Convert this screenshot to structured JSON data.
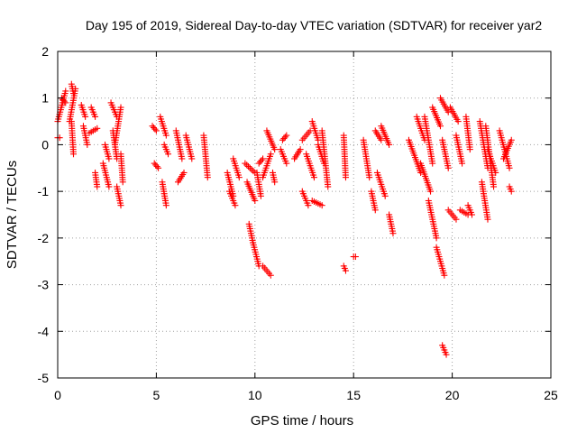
{
  "chart_data": {
    "type": "scatter",
    "title": "Day 195 of 2019, Sidereal Day-to-day VTEC variation (SDTVAR) for receiver yar2",
    "xlabel": "GPS time / hours",
    "ylabel": "SDTVAR / TECUs",
    "xlim": [
      0,
      25
    ],
    "ylim": [
      -5,
      2
    ],
    "xticks": [
      "0",
      "5",
      "10",
      "15",
      "20",
      "25"
    ],
    "yticks": [
      "2",
      "1",
      "0",
      "-1",
      "-2",
      "-3",
      "-4",
      "-5"
    ],
    "grid": true,
    "marker": "plus",
    "color": "#ff0000",
    "series": [
      {
        "name": "SDTVAR",
        "segments": [
          [
            0.0,
            0.1,
            0.15,
            0.15
          ],
          [
            0.0,
            0.4,
            0.5,
            1.15
          ],
          [
            0.4,
            0.2,
            0.9,
            1.0
          ],
          [
            0.6,
            0.9,
            0.5,
            1.2
          ],
          [
            0.8,
            0.7,
            1.1,
            1.3
          ],
          [
            0.7,
            0.8,
            0.5,
            -0.2
          ],
          [
            1.2,
            1.4,
            0.85,
            0.6
          ],
          [
            1.3,
            1.5,
            0.4,
            0.0
          ],
          [
            1.6,
            2.0,
            0.25,
            0.35
          ],
          [
            1.7,
            1.9,
            0.8,
            0.6
          ],
          [
            1.9,
            2.0,
            -0.6,
            -0.9
          ],
          [
            2.3,
            2.6,
            -0.4,
            -0.9
          ],
          [
            2.4,
            2.6,
            0.0,
            -0.3
          ],
          [
            2.8,
            3.0,
            0.3,
            -0.3
          ],
          [
            2.7,
            3.0,
            0.9,
            0.6
          ],
          [
            2.9,
            3.2,
            0.0,
            0.8
          ],
          [
            3.0,
            3.2,
            -0.9,
            -1.3
          ],
          [
            3.2,
            3.3,
            -0.2,
            -0.8
          ],
          [
            4.8,
            5.0,
            0.4,
            0.3
          ],
          [
            4.9,
            5.1,
            -0.4,
            -0.5
          ],
          [
            5.2,
            5.5,
            0.6,
            0.2
          ],
          [
            5.3,
            5.5,
            -0.8,
            -1.3
          ],
          [
            5.4,
            5.6,
            0.0,
            -0.2
          ],
          [
            6.0,
            6.3,
            0.3,
            -0.3
          ],
          [
            6.1,
            6.4,
            -0.8,
            -0.6
          ],
          [
            6.5,
            6.8,
            0.2,
            -0.3
          ],
          [
            7.4,
            7.6,
            0.2,
            -0.7
          ],
          [
            8.6,
            8.9,
            -0.6,
            -1.1
          ],
          [
            8.7,
            9.0,
            -1.0,
            -1.3
          ],
          [
            8.9,
            9.2,
            -0.3,
            -0.7
          ],
          [
            9.5,
            10.0,
            -0.4,
            -0.6
          ],
          [
            9.6,
            10.0,
            -0.8,
            -1.2
          ],
          [
            9.7,
            9.9,
            -1.7,
            -2.1
          ],
          [
            9.9,
            10.2,
            -2.1,
            -2.6
          ],
          [
            10.1,
            10.3,
            -0.6,
            -1.1
          ],
          [
            10.2,
            10.4,
            -0.4,
            -0.3
          ],
          [
            10.4,
            10.8,
            -0.7,
            -0.2
          ],
          [
            10.4,
            10.8,
            -2.6,
            -2.8
          ],
          [
            10.6,
            11.0,
            0.3,
            -0.1
          ],
          [
            10.9,
            11.0,
            -0.6,
            -0.8
          ],
          [
            11.3,
            11.6,
            -0.1,
            -0.4
          ],
          [
            11.4,
            11.6,
            0.1,
            0.2
          ],
          [
            12.0,
            12.3,
            -0.3,
            -0.1
          ],
          [
            12.4,
            12.7,
            -1.0,
            -1.3
          ],
          [
            12.4,
            12.8,
            0.1,
            0.3
          ],
          [
            12.6,
            13.0,
            -0.2,
            -0.7
          ],
          [
            12.9,
            13.2,
            0.5,
            0.1
          ],
          [
            12.9,
            13.4,
            -1.2,
            -1.3
          ],
          [
            13.2,
            13.5,
            0.0,
            -0.4
          ],
          [
            13.4,
            13.7,
            0.3,
            -0.9
          ],
          [
            14.5,
            14.6,
            0.2,
            -0.7
          ],
          [
            14.5,
            14.6,
            -2.6,
            -2.7
          ],
          [
            15.0,
            15.1,
            -2.4,
            -2.4
          ],
          [
            15.5,
            15.8,
            0.1,
            -0.7
          ],
          [
            15.9,
            16.1,
            -1.0,
            -1.4
          ],
          [
            16.1,
            16.4,
            0.3,
            0.1
          ],
          [
            16.2,
            16.6,
            -0.6,
            -1.1
          ],
          [
            16.4,
            16.8,
            0.4,
            0.0
          ],
          [
            16.8,
            17.0,
            -1.5,
            -1.9
          ],
          [
            17.8,
            18.4,
            0.1,
            -0.6
          ],
          [
            18.2,
            18.6,
            0.6,
            0.1
          ],
          [
            18.4,
            18.9,
            -0.4,
            -1.0
          ],
          [
            18.6,
            19.0,
            0.6,
            -0.4
          ],
          [
            18.8,
            19.2,
            -1.2,
            -2.0
          ],
          [
            19.0,
            19.4,
            0.8,
            0.4
          ],
          [
            19.2,
            19.6,
            -2.2,
            -2.8
          ],
          [
            19.4,
            19.8,
            1.0,
            0.7
          ],
          [
            19.5,
            19.8,
            0.1,
            -0.5
          ],
          [
            19.5,
            19.7,
            -4.3,
            -4.5
          ],
          [
            19.8,
            20.2,
            -1.4,
            -1.6
          ],
          [
            19.9,
            20.3,
            0.8,
            0.5
          ],
          [
            20.2,
            20.5,
            0.2,
            -0.4
          ],
          [
            20.4,
            20.8,
            -1.4,
            -1.5
          ],
          [
            20.7,
            20.9,
            0.6,
            -0.1
          ],
          [
            20.8,
            21.0,
            -1.3,
            -1.5
          ],
          [
            21.4,
            21.8,
            0.5,
            -0.5
          ],
          [
            21.5,
            21.8,
            -0.8,
            -1.6
          ],
          [
            21.7,
            22.1,
            0.4,
            -0.9
          ],
          [
            21.8,
            22.2,
            -0.1,
            -0.6
          ],
          [
            22.4,
            22.9,
            0.3,
            -0.5
          ],
          [
            22.6,
            23.0,
            -0.3,
            0.1
          ],
          [
            22.9,
            23.0,
            -0.9,
            -1.0
          ]
        ]
      }
    ]
  }
}
